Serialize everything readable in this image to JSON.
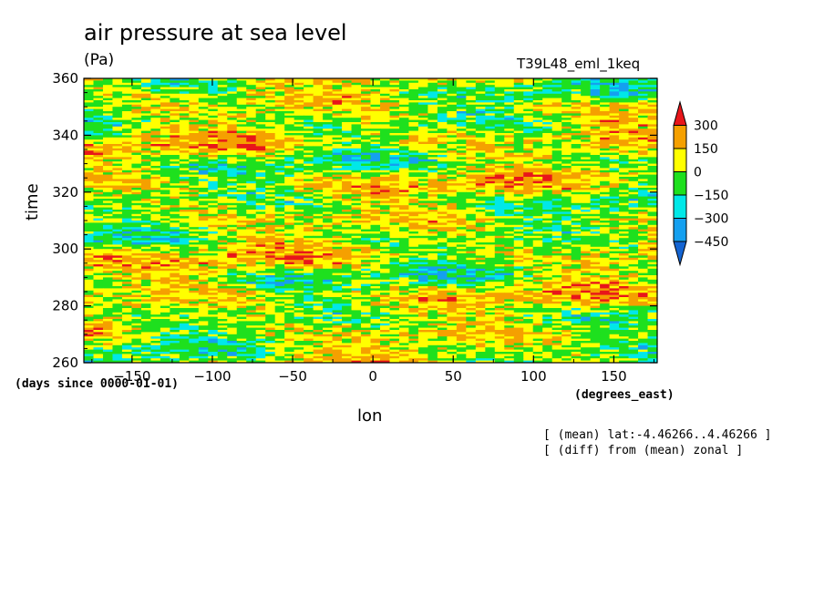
{
  "chart_data": {
    "type": "heatmap",
    "title": "air pressure at sea level",
    "units": "(Pa)",
    "experiment": "T39L48_eml_1keq",
    "xlabel": "lon",
    "x_units": "(degrees_east)",
    "ylabel": "time",
    "y_units": "(days since 0000-01-01)",
    "xlim": [
      -180,
      177
    ],
    "ylim": [
      260,
      360
    ],
    "x_ticks": [
      -150,
      -100,
      -50,
      0,
      50,
      100,
      150
    ],
    "y_ticks": [
      260,
      280,
      300,
      320,
      340,
      360
    ],
    "colorbar": {
      "levels": [
        300,
        150,
        0,
        -150,
        -300,
        -450
      ],
      "colors": [
        "#e8161a",
        "#f5a000",
        "#ffff00",
        "#1ee01e",
        "#00e8e8",
        "#14a0f0",
        "#1464d2"
      ]
    },
    "notes": [
      "[ (mean) lat:-4.46266..4.46266 ]",
      "[ (diff) from (mean) zonal ]"
    ]
  }
}
